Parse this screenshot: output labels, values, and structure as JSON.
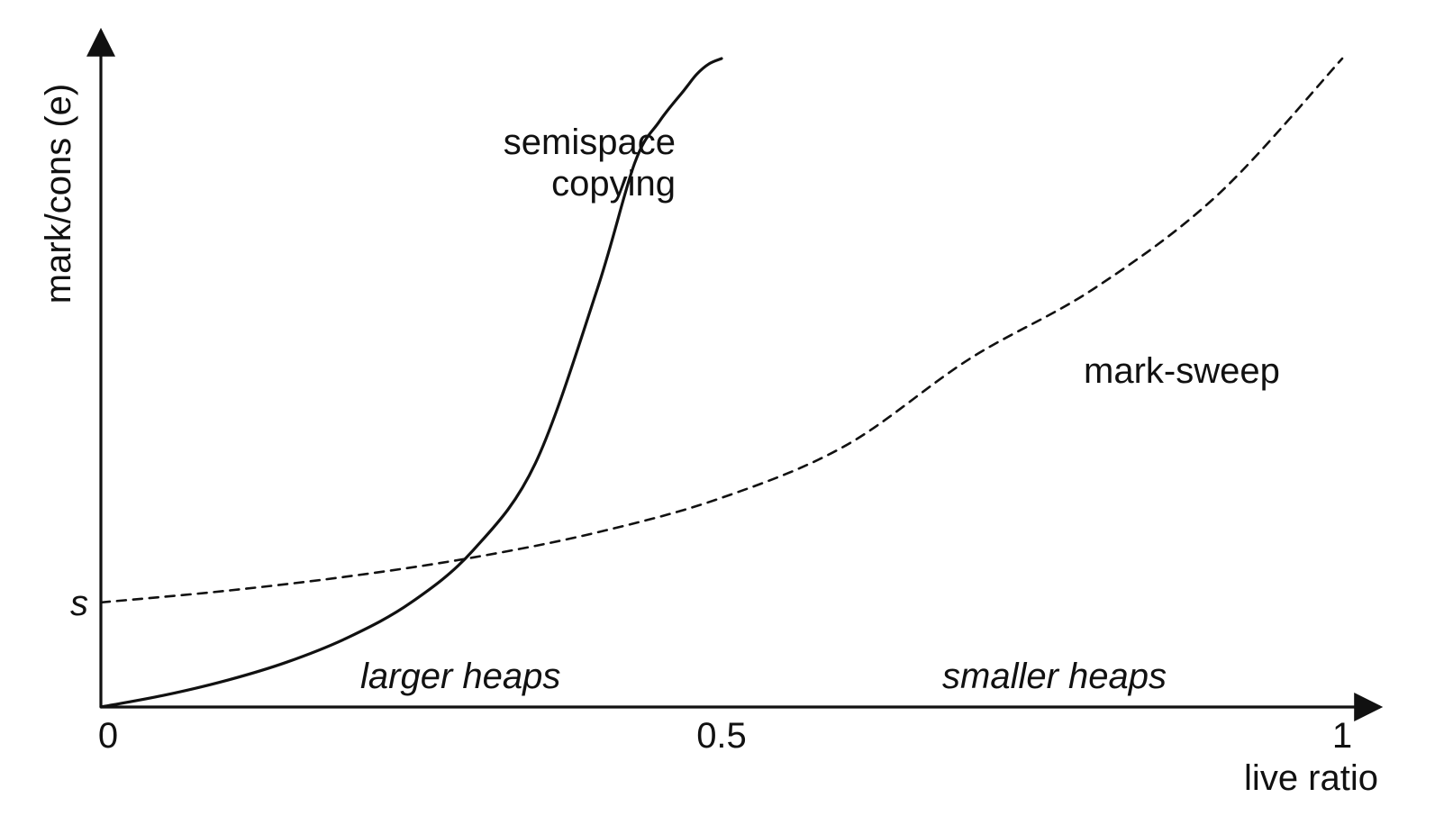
{
  "chart_data": {
    "type": "line",
    "title": "",
    "xlabel": "live ratio",
    "ylabel": "mark/cons (e)",
    "xlim": [
      0,
      1
    ],
    "ylim": [
      0,
      6.2
    ],
    "grid": false,
    "legend": "none",
    "x_ticks": [
      {
        "value": 0,
        "label": "0"
      },
      {
        "value": 0.5,
        "label": "0.5"
      },
      {
        "value": 1,
        "label": "1"
      }
    ],
    "y_ticks": [
      {
        "value": 1,
        "label": "s"
      }
    ],
    "series": [
      {
        "id": "semispace-copying",
        "name": "semispace\ncopying",
        "style": "solid",
        "color": "#111111",
        "x": [
          0,
          0.05,
          0.1,
          0.15,
          0.2,
          0.25,
          0.3,
          0.35,
          0.4,
          0.43,
          0.45,
          0.47,
          0.48,
          0.49,
          0.5
        ],
        "y": [
          0,
          0.11,
          0.25,
          0.43,
          0.67,
          1.0,
          1.5,
          2.33,
          4.0,
          5.2,
          5.6,
          5.9,
          6.05,
          6.15,
          6.2
        ]
      },
      {
        "id": "mark-sweep",
        "name": "mark-sweep",
        "style": "dashed",
        "color": "#111111",
        "x": [
          0,
          0.1,
          0.2,
          0.3,
          0.4,
          0.5,
          0.6,
          0.7,
          0.8,
          0.9,
          1.0
        ],
        "y": [
          1.0,
          1.11,
          1.25,
          1.43,
          1.67,
          2.0,
          2.5,
          3.33,
          4.0,
          4.9,
          6.2
        ]
      }
    ],
    "annotations": [
      {
        "id": "larger-heaps",
        "text": "larger heaps",
        "italic": true
      },
      {
        "id": "smaller-heaps",
        "text": "smaller heaps",
        "italic": true
      }
    ]
  }
}
